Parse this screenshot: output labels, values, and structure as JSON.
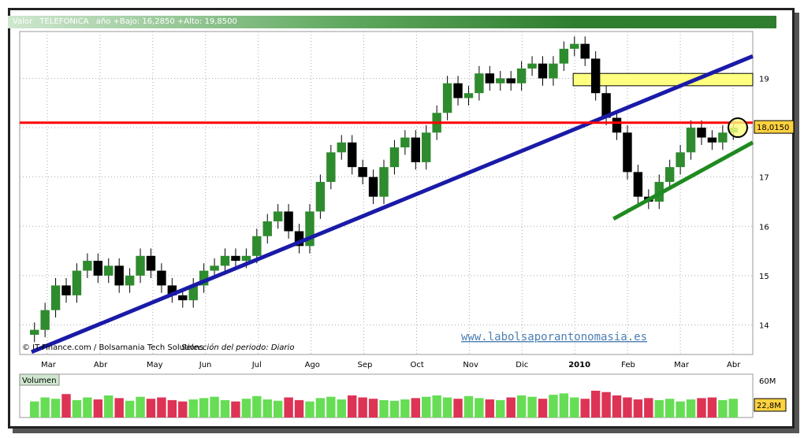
{
  "header": {
    "label": "Valor",
    "symbol": "TELEFONICA",
    "info": "año +Bajo: 16,2850 +Alto: 19,8500"
  },
  "credit": "© IT-Finance.com / Bolsamania Tech Solutions",
  "selection": "Selección del periodo: Diario",
  "watermark": "www.labolsaporantonomasia.es",
  "volume_label": "Volumen",
  "colors": {
    "up": "#2e8b2e",
    "down": "#000000",
    "resistance": "#ff0000",
    "trend_long": "#1a1aa8",
    "trend_short": "#1f8a1f",
    "zone": "#ffff80",
    "vol_up": "#66dd55",
    "vol_down": "#dd3355"
  },
  "chart_data": {
    "type": "candlestick",
    "title": "TELEFONICA",
    "y_ticks": [
      14,
      15,
      16,
      17,
      18,
      19
    ],
    "ylim": [
      13.4,
      19.95
    ],
    "x_ticks": [
      "Mar",
      "Abr",
      "May",
      "Jun",
      "Jul",
      "Ago",
      "Sep",
      "Oct",
      "Nov",
      "Dic",
      "2010",
      "Feb",
      "Mar",
      "Abr"
    ],
    "last_price_label": "18,0150",
    "resistance_level": 18.1,
    "zone": {
      "from": 18.85,
      "to": 19.1
    },
    "trend_long": {
      "from": [
        0,
        13.45
      ],
      "to": [
        1.0,
        19.45
      ]
    },
    "trend_short": {
      "from": [
        0.81,
        16.15
      ],
      "to": [
        1.0,
        17.7
      ]
    },
    "price_series": [
      13.9,
      14.3,
      14.8,
      14.6,
      15.1,
      15.3,
      15.0,
      15.2,
      14.8,
      15.0,
      15.4,
      15.1,
      14.8,
      14.6,
      14.5,
      14.8,
      15.1,
      15.2,
      15.4,
      15.3,
      15.4,
      15.8,
      16.1,
      16.3,
      15.9,
      15.6,
      16.3,
      16.9,
      17.5,
      17.7,
      17.2,
      17.0,
      16.6,
      17.2,
      17.6,
      17.8,
      17.3,
      17.9,
      18.3,
      18.9,
      18.6,
      18.7,
      19.1,
      18.9,
      19.0,
      18.9,
      19.2,
      19.3,
      19.0,
      19.3,
      19.6,
      19.7,
      19.4,
      18.7,
      18.2,
      17.9,
      17.1,
      16.6,
      16.5,
      16.9,
      17.2,
      17.5,
      18.0,
      17.8,
      17.7,
      17.9,
      18.0
    ],
    "volume_series": [
      24,
      30,
      28,
      35,
      26,
      30,
      27,
      33,
      29,
      25,
      31,
      28,
      30,
      26,
      24,
      27,
      29,
      31,
      26,
      24,
      28,
      32,
      27,
      25,
      30,
      26,
      24,
      29,
      31,
      27,
      33,
      30,
      28,
      26,
      25,
      27,
      29,
      31,
      33,
      30,
      28,
      32,
      29,
      27,
      26,
      30,
      33,
      31,
      28,
      34,
      36,
      30,
      28,
      40,
      38,
      33,
      30,
      27,
      29,
      26,
      28,
      24,
      27,
      29,
      30,
      26,
      28
    ],
    "volume_ticks": [
      "60M",
      "22,8M"
    ]
  }
}
